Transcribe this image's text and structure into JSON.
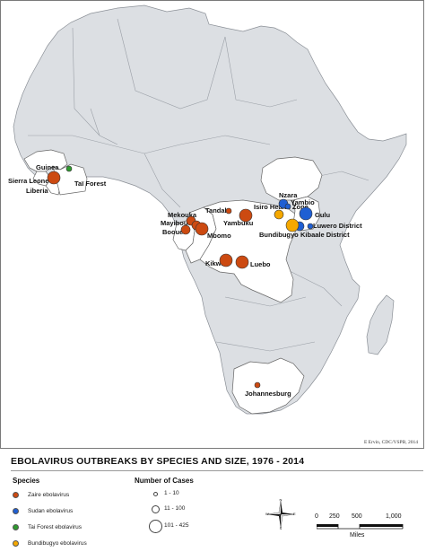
{
  "title": "EBOLAVIRUS OUTBREAKS BY SPECIES AND SIZE, 1976 - 2014",
  "credit": "E Ervin, CDC/VSPB, 2014",
  "colors": {
    "zaire": "#cc4a11",
    "sudan": "#1f5fd3",
    "tai": "#2e9a2e",
    "bundibugyo": "#f5a800",
    "affected_country": "#ffffff",
    "other_land": "#dcdfe3",
    "border": "#8a8f96"
  },
  "legend": {
    "species_header": "Species",
    "cases_header": "Number of Cases",
    "species": [
      {
        "label": "Zaire ebolavirus",
        "color": "#cc4a11"
      },
      {
        "label": "Sudan ebolavirus",
        "color": "#1f5fd3"
      },
      {
        "label": "Tai Forest ebolavirus",
        "color": "#2e9a2e"
      },
      {
        "label": "Bundibugyo ebolavirus",
        "color": "#f5a800"
      }
    ],
    "sizes": [
      {
        "label": "1 - 10"
      },
      {
        "label": "11 - 100"
      },
      {
        "label": "101 - 425"
      }
    ]
  },
  "scale_bar": {
    "ticks": [
      "0",
      "250",
      "500",
      "1,000"
    ],
    "unit": "Miles"
  },
  "compass": {
    "n": "N",
    "s": "S",
    "e": "E",
    "w": "W"
  },
  "country_labels": [
    {
      "id": "guinea",
      "text": "Guinea"
    },
    {
      "id": "sierra-leone",
      "text": "Sierra Leone"
    },
    {
      "id": "liberia",
      "text": "Liberia"
    },
    {
      "id": "tai-forest",
      "text": "Taï Forest"
    }
  ],
  "places": [
    {
      "id": "mekouka",
      "text": "Mekouka"
    },
    {
      "id": "mayibout",
      "text": "Mayibout"
    },
    {
      "id": "booue",
      "text": "Booue"
    },
    {
      "id": "mbomo",
      "text": "Mbomo"
    },
    {
      "id": "tandala",
      "text": "Tandala"
    },
    {
      "id": "yambuku",
      "text": "Yambuku"
    },
    {
      "id": "kikwit",
      "text": "Kikwit"
    },
    {
      "id": "luebo",
      "text": "Luebo"
    },
    {
      "id": "johannesburg",
      "text": "Johannesburg"
    },
    {
      "id": "isiro",
      "text": "Isiro Health Zone"
    },
    {
      "id": "nzara",
      "text": "Nzara"
    },
    {
      "id": "yambio",
      "text": "Yambio"
    },
    {
      "id": "gulu",
      "text": "Gulu"
    },
    {
      "id": "luwero",
      "text": "Luwero District"
    },
    {
      "id": "kibaale",
      "text": "Kibaale District"
    },
    {
      "id": "bundibugyo",
      "text": "Bundibugyo"
    }
  ],
  "outbreaks": [
    {
      "place": "Guinea / Sierra Leone / Liberia",
      "species": "zaire",
      "cases": "101 - 425"
    },
    {
      "place": "Taï Forest",
      "species": "tai",
      "cases": "1 - 10"
    },
    {
      "place": "Mekouka",
      "species": "zaire",
      "cases": "11 - 100"
    },
    {
      "place": "Mayibout",
      "species": "zaire",
      "cases": "11 - 100"
    },
    {
      "place": "Booue",
      "species": "zaire",
      "cases": "11 - 100"
    },
    {
      "place": "Mbomo",
      "species": "zaire",
      "cases": "101 - 425"
    },
    {
      "place": "Tandala",
      "species": "zaire",
      "cases": "1 - 10"
    },
    {
      "place": "Yambuku",
      "species": "zaire",
      "cases": "101 - 425"
    },
    {
      "place": "Kikwit",
      "species": "zaire",
      "cases": "101 - 425"
    },
    {
      "place": "Luebo",
      "species": "zaire",
      "cases": "101 - 425"
    },
    {
      "place": "Johannesburg",
      "species": "zaire",
      "cases": "1 - 10"
    },
    {
      "place": "Isiro Health Zone",
      "species": "bundibugyo",
      "cases": "11 - 100"
    },
    {
      "place": "Nzara",
      "species": "sudan",
      "cases": "11 - 100"
    },
    {
      "place": "Yambio",
      "species": "sudan",
      "cases": "1 - 10"
    },
    {
      "place": "Gulu",
      "species": "sudan",
      "cases": "101 - 425"
    },
    {
      "place": "Luwero District",
      "species": "sudan",
      "cases": "1 - 10"
    },
    {
      "place": "Kibaale District",
      "species": "sudan",
      "cases": "11 - 100"
    },
    {
      "place": "Bundibugyo",
      "species": "bundibugyo",
      "cases": "101 - 425"
    }
  ]
}
